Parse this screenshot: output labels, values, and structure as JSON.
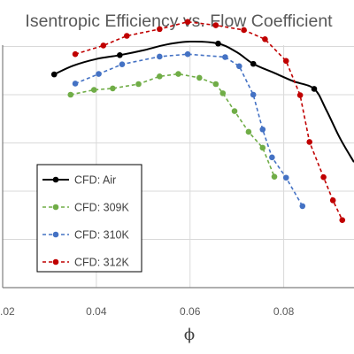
{
  "chart_data": {
    "type": "line",
    "title": "Isentropic Efficiency vs. Flow Coefficient",
    "xlabel": "ϕ",
    "ylabel": "",
    "xlim": [
      0.02,
      0.095
    ],
    "ylim": [
      0,
      10
    ],
    "x_ticks": [
      0.02,
      0.04,
      0.06,
      0.08
    ],
    "x_tick_labels": [
      ".02",
      "0.04",
      "0.06",
      "0.08"
    ],
    "y_gridlines": [
      1,
      2,
      3,
      4,
      5,
      6
    ],
    "grid": true,
    "legend_position": "bottom-left",
    "series": [
      {
        "name": "CFD: Air",
        "color": "#000000",
        "style": "solid",
        "smooth": true,
        "marked_points": [
          [
            0.031,
            4.42
          ],
          [
            0.045,
            4.82
          ],
          [
            0.066,
            5.06
          ],
          [
            0.0735,
            4.64
          ],
          [
            0.0865,
            4.12
          ]
        ],
        "x": [
          0.031,
          0.035,
          0.04,
          0.045,
          0.05,
          0.055,
          0.06,
          0.066,
          0.07,
          0.0735,
          0.078,
          0.082,
          0.0865,
          0.089,
          0.092,
          0.095
        ],
        "y": [
          4.42,
          4.6,
          4.74,
          4.82,
          4.92,
          5.04,
          5.1,
          5.06,
          4.88,
          4.64,
          4.45,
          4.28,
          4.12,
          3.7,
          3.1,
          2.6
        ]
      },
      {
        "name": "CFD: 309K",
        "color": "#70ad47",
        "style": "dashed",
        "x": [
          0.0345,
          0.0395,
          0.0435,
          0.049,
          0.0535,
          0.0575,
          0.062,
          0.0655,
          0.067,
          0.0695,
          0.0725,
          0.0755,
          0.078
        ],
        "y": [
          4.0,
          4.1,
          4.13,
          4.22,
          4.38,
          4.43,
          4.35,
          4.22,
          4.03,
          3.66,
          3.23,
          2.9,
          2.3
        ]
      },
      {
        "name": "CFD: 310K",
        "color": "#4472c4",
        "style": "dashed",
        "x": [
          0.0355,
          0.0405,
          0.0455,
          0.0535,
          0.0595,
          0.0675,
          0.0705,
          0.0735,
          0.0755,
          0.0775,
          0.0805,
          0.084
        ],
        "y": [
          4.23,
          4.43,
          4.63,
          4.79,
          4.84,
          4.78,
          4.59,
          4.0,
          3.28,
          2.7,
          2.28,
          1.69
        ]
      },
      {
        "name": "CFD: 312K",
        "color": "#c00000",
        "style": "dashed",
        "x": [
          0.0355,
          0.0415,
          0.0465,
          0.0535,
          0.0595,
          0.0655,
          0.0715,
          0.076,
          0.0805,
          0.0835,
          0.0855,
          0.0885,
          0.0905,
          0.0925
        ],
        "y": [
          4.84,
          5.02,
          5.22,
          5.36,
          5.51,
          5.44,
          5.34,
          5.15,
          4.7,
          3.99,
          3.02,
          2.29,
          1.81,
          1.4
        ]
      }
    ]
  }
}
